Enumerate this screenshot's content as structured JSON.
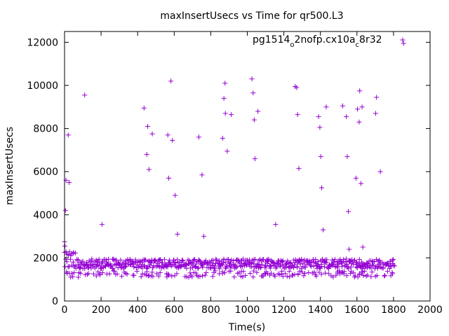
{
  "chart_data": {
    "type": "scatter",
    "title": "maxInsertUsecs vs Time for qr500.L3",
    "xlabel": "Time(s)",
    "ylabel": "maxInsertUsecs",
    "xlim": [
      0,
      2000
    ],
    "ylim": [
      0,
      12500
    ],
    "x_ticks": [
      "0",
      "200",
      "400",
      "600",
      "800",
      "1000",
      "1200",
      "1400",
      "1600",
      "1800",
      "2000"
    ],
    "y_ticks": [
      "0",
      "2000",
      "4000",
      "6000",
      "8000",
      "10000",
      "12000"
    ],
    "grid": false,
    "legend_position": "top-right",
    "marker": "+",
    "color": "#9400d3",
    "series": [
      {
        "name": "pg1514_o2nofp.cx10a_c8r32",
        "legend_parts": [
          "pg1514",
          "o",
          "2nofp.cx10a",
          "c",
          "8r32"
        ],
        "outliers": [
          [
            0,
            2750
          ],
          [
            2,
            2550
          ],
          [
            5,
            4200
          ],
          [
            8,
            5600
          ],
          [
            20,
            7700
          ],
          [
            25,
            5500
          ],
          [
            110,
            9550
          ],
          [
            205,
            3550
          ],
          [
            435,
            8950
          ],
          [
            450,
            6800
          ],
          [
            455,
            8100
          ],
          [
            462,
            6100
          ],
          [
            480,
            7750
          ],
          [
            565,
            7700
          ],
          [
            570,
            5700
          ],
          [
            582,
            10200
          ],
          [
            590,
            7450
          ],
          [
            605,
            4900
          ],
          [
            618,
            3100
          ],
          [
            735,
            7600
          ],
          [
            752,
            5850
          ],
          [
            762,
            3000
          ],
          [
            865,
            7550
          ],
          [
            872,
            9400
          ],
          [
            878,
            10100
          ],
          [
            880,
            8700
          ],
          [
            890,
            6950
          ],
          [
            912,
            8650
          ],
          [
            1025,
            10300
          ],
          [
            1032,
            9650
          ],
          [
            1038,
            8400
          ],
          [
            1042,
            6600
          ],
          [
            1058,
            8800
          ],
          [
            1155,
            3550
          ],
          [
            1262,
            9950
          ],
          [
            1270,
            9900
          ],
          [
            1275,
            8650
          ],
          [
            1282,
            6150
          ],
          [
            1390,
            8550
          ],
          [
            1397,
            8050
          ],
          [
            1402,
            6700
          ],
          [
            1407,
            5250
          ],
          [
            1415,
            3300
          ],
          [
            1432,
            9000
          ],
          [
            1522,
            9050
          ],
          [
            1542,
            8550
          ],
          [
            1547,
            6700
          ],
          [
            1553,
            4150
          ],
          [
            1557,
            2400
          ],
          [
            1595,
            5700
          ],
          [
            1603,
            8900
          ],
          [
            1612,
            8300
          ],
          [
            1615,
            9750
          ],
          [
            1622,
            5450
          ],
          [
            1628,
            9000
          ],
          [
            1632,
            2500
          ],
          [
            1702,
            8700
          ],
          [
            1707,
            9450
          ],
          [
            1728,
            6000
          ],
          [
            1855,
            11950
          ]
        ],
        "dense_band": {
          "x_range": [
            0,
            1800
          ],
          "main_band": [
            1500,
            1950
          ],
          "lower_band": [
            1100,
            1400
          ],
          "early_peak": [
            2100,
            2300
          ],
          "step_s": 6
        }
      }
    ]
  }
}
